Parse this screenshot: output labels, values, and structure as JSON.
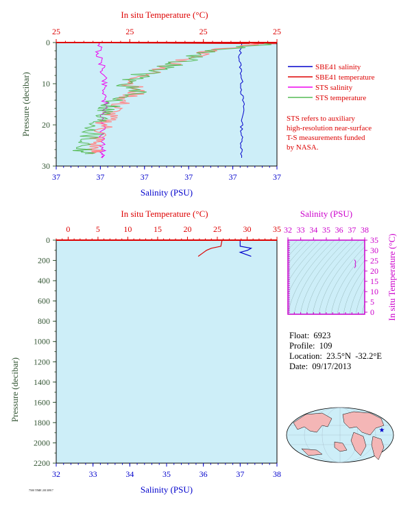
{
  "colors": {
    "plot_bg": "#cdeef8",
    "salinity": "#0000cc",
    "temperature": "#dd0000",
    "sts_salinity": "#ee00ee",
    "sts_temperature": "#55bb55",
    "sts_temperature_light": "#ff8888",
    "pressure_axis": "#335533",
    "magenta_axis": "#cc00cc"
  },
  "top_panel": {
    "top_axis_title": "In situ Temperature (°C)",
    "bottom_axis_title": "Salinity (PSU)",
    "left_axis_title": "Pressure (decibar)",
    "top_ticks": [
      "25",
      "25",
      "25",
      "25"
    ],
    "bottom_ticks": [
      "37",
      "37",
      "37",
      "37",
      "37",
      "37"
    ],
    "left_ticks": [
      "0",
      "10",
      "20",
      "30"
    ],
    "legend": [
      {
        "label": "SBE41 salinity",
        "color": "#0000cc"
      },
      {
        "label": "SBE41 temperature",
        "color": "#dd0000"
      },
      {
        "label": "STS salinity",
        "color": "#ee00ee"
      },
      {
        "label": "STS temperature",
        "color": "#55bb55"
      }
    ],
    "note": [
      "STS refers to auxiliary",
      "high-resolution near-surface",
      "T-S measurements funded",
      "by NASA."
    ]
  },
  "bottom_panel": {
    "top_axis_title": "In situ Temperature (°C)",
    "bottom_axis_title": "Salinity (PSU)",
    "left_axis_title": "Pressure (decibar)",
    "top_ticks": [
      "0",
      "5",
      "10",
      "15",
      "20",
      "25",
      "30",
      "35"
    ],
    "bottom_ticks": [
      "32",
      "33",
      "34",
      "35",
      "36",
      "37",
      "38"
    ],
    "left_ticks": [
      "0",
      "200",
      "400",
      "600",
      "800",
      "1000",
      "1200",
      "1400",
      "1600",
      "1800",
      "2000",
      "2200"
    ]
  },
  "ts_panel": {
    "top_axis_title": "Salinity (PSU)",
    "right_axis_title": "In situ Temperature (°C)",
    "top_ticks": [
      "32",
      "33",
      "34",
      "35",
      "36",
      "37",
      "38"
    ],
    "right_ticks": [
      "35",
      "30",
      "25",
      "20",
      "15",
      "10",
      "5",
      "0"
    ]
  },
  "info": {
    "float": "Float:  6923",
    "profile": "Profile:  109",
    "location": "Location:  23.5°N  -32.2°E",
    "date": "Date:  09/17/2013"
  },
  "footer_tiny": "7500 TIME 20130917",
  "chart_data": [
    {
      "type": "line",
      "title": "",
      "xlabel": "Salinity (PSU) / In situ Temperature (°C)",
      "ylabel": "Pressure (decibar)",
      "ylim": [
        30,
        0
      ],
      "series": [
        {
          "name": "SBE41 salinity",
          "pressure": [
            0,
            4,
            8,
            12,
            16,
            20,
            24,
            28
          ],
          "x_frac": [
            0.84,
            0.83,
            0.84,
            0.84,
            0.85,
            0.84,
            0.84,
            0.84
          ]
        },
        {
          "name": "SBE41 temperature",
          "pressure": [
            0,
            0.3
          ],
          "x_frac": [
            0.0,
            1.0
          ]
        },
        {
          "name": "STS salinity",
          "pressure": [
            0,
            3,
            6,
            9,
            12,
            15,
            18,
            21,
            24,
            27,
            28
          ],
          "x_frac": [
            0.2,
            0.19,
            0.21,
            0.22,
            0.22,
            0.22,
            0.21,
            0.21,
            0.21,
            0.21,
            0.21
          ]
        },
        {
          "name": "STS temperature",
          "pressure": [
            0,
            2,
            4,
            6,
            8,
            10,
            12,
            14,
            16,
            18,
            20,
            22,
            24,
            26,
            27
          ],
          "x_frac": [
            1.0,
            0.72,
            0.6,
            0.5,
            0.38,
            0.32,
            0.35,
            0.28,
            0.24,
            0.2,
            0.19,
            0.17,
            0.14,
            0.13,
            0.13
          ]
        }
      ]
    },
    {
      "type": "line",
      "title": "",
      "xlabel": "Salinity (PSU)",
      "ylabel": "Pressure (decibar)",
      "ylim": [
        2200,
        0
      ],
      "salinity_xlim": [
        32,
        38
      ],
      "temperature_xlim": [
        0,
        35
      ],
      "series": [
        {
          "name": "SBE41 salinity",
          "pressure": [
            0,
            60,
            80,
            100,
            120,
            160
          ],
          "x": [
            37.0,
            37.0,
            37.3,
            37.2,
            37.0,
            37.3
          ]
        },
        {
          "name": "SBE41 temperature",
          "pressure": [
            0,
            60,
            80,
            100,
            130,
            160
          ],
          "x": [
            25.8,
            25.6,
            24.0,
            23.2,
            22.5,
            21.8
          ]
        }
      ]
    },
    {
      "type": "scatter",
      "title": "",
      "xlabel": "Salinity (PSU)",
      "ylabel": "In situ Temperature (°C)",
      "xlim": [
        32,
        38
      ],
      "ylim": [
        -1,
        35
      ],
      "series": [
        {
          "name": "T-S profile",
          "x": [
            37.2,
            37.3,
            37.25,
            37.3,
            37.2
          ],
          "y": [
            21.5,
            22.5,
            23.5,
            24.5,
            25.5
          ]
        }
      ]
    }
  ]
}
